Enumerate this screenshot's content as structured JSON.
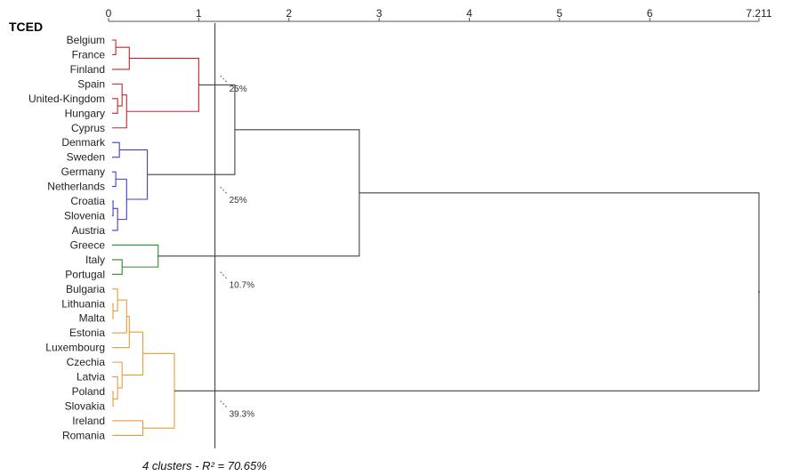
{
  "chart_data": {
    "type": "dendrogram",
    "title": "TCED",
    "axis": {
      "ticks": [
        "0",
        "1",
        "2",
        "3",
        "4",
        "5",
        "6",
        "7.211"
      ],
      "tick_values": [
        0,
        1,
        2,
        3,
        4,
        5,
        6,
        7.211
      ],
      "range": [
        0,
        7.211
      ]
    },
    "leaves": [
      {
        "name": "Belgium",
        "cluster": 0
      },
      {
        "name": "France",
        "cluster": 0
      },
      {
        "name": "Finland",
        "cluster": 0
      },
      {
        "name": "Spain",
        "cluster": 0
      },
      {
        "name": "United-Kingdom",
        "cluster": 0
      },
      {
        "name": "Hungary",
        "cluster": 0
      },
      {
        "name": "Cyprus",
        "cluster": 0
      },
      {
        "name": "Denmark",
        "cluster": 1
      },
      {
        "name": "Sweden",
        "cluster": 1
      },
      {
        "name": "Germany",
        "cluster": 1
      },
      {
        "name": "Netherlands",
        "cluster": 1
      },
      {
        "name": "Croatia",
        "cluster": 1
      },
      {
        "name": "Slovenia",
        "cluster": 1
      },
      {
        "name": "Austria",
        "cluster": 1
      },
      {
        "name": "Greece",
        "cluster": 2
      },
      {
        "name": "Italy",
        "cluster": 2
      },
      {
        "name": "Portugal",
        "cluster": 2
      },
      {
        "name": "Bulgaria",
        "cluster": 3
      },
      {
        "name": "Lithuania",
        "cluster": 3
      },
      {
        "name": "Malta",
        "cluster": 3
      },
      {
        "name": "Estonia",
        "cluster": 3
      },
      {
        "name": "Luxembourg",
        "cluster": 3
      },
      {
        "name": "Czechia",
        "cluster": 3
      },
      {
        "name": "Latvia",
        "cluster": 3
      },
      {
        "name": "Poland",
        "cluster": 3
      },
      {
        "name": "Slovakia",
        "cluster": 3
      },
      {
        "name": "Ireland",
        "cluster": 3
      },
      {
        "name": "Romania",
        "cluster": 3
      }
    ],
    "merges": [
      {
        "a": "L0",
        "b": "L1",
        "h": 0.08,
        "id": "m1"
      },
      {
        "a": "m1",
        "b": "L2",
        "h": 0.23,
        "id": "m2"
      },
      {
        "a": "L4",
        "b": "L5",
        "h": 0.1,
        "id": "m3"
      },
      {
        "a": "L3",
        "b": "m3",
        "h": 0.15,
        "id": "m4"
      },
      {
        "a": "m4",
        "b": "L6",
        "h": 0.2,
        "id": "m5"
      },
      {
        "a": "m2",
        "b": "m5",
        "h": 1.0,
        "id": "m6"
      },
      {
        "a": "L7",
        "b": "L8",
        "h": 0.12,
        "id": "m7"
      },
      {
        "a": "L9",
        "b": "L10",
        "h": 0.08,
        "id": "m8"
      },
      {
        "a": "L11",
        "b": "L12",
        "h": 0.05,
        "id": "m9"
      },
      {
        "a": "m9",
        "b": "L13",
        "h": 0.1,
        "id": "m10"
      },
      {
        "a": "m8",
        "b": "m10",
        "h": 0.2,
        "id": "m11"
      },
      {
        "a": "m7",
        "b": "m11",
        "h": 0.43,
        "id": "m12"
      },
      {
        "a": "m6",
        "b": "m12",
        "h": 1.4,
        "id": "m13"
      },
      {
        "a": "L15",
        "b": "L16",
        "h": 0.15,
        "id": "m14"
      },
      {
        "a": "L14",
        "b": "m14",
        "h": 0.55,
        "id": "m15"
      },
      {
        "a": "m13",
        "b": "m15",
        "h": 2.78,
        "id": "m16"
      },
      {
        "a": "L18",
        "b": "L19",
        "h": 0.05,
        "id": "m17"
      },
      {
        "a": "L17",
        "b": "m17",
        "h": 0.1,
        "id": "m18"
      },
      {
        "a": "m18",
        "b": "L20",
        "h": 0.2,
        "id": "m19"
      },
      {
        "a": "m19",
        "b": "L21",
        "h": 0.23,
        "id": "m20"
      },
      {
        "a": "L24",
        "b": "L25",
        "h": 0.05,
        "id": "m21"
      },
      {
        "a": "L23",
        "b": "m21",
        "h": 0.1,
        "id": "m22"
      },
      {
        "a": "L22",
        "b": "m22",
        "h": 0.15,
        "id": "m23"
      },
      {
        "a": "m20",
        "b": "m23",
        "h": 0.38,
        "id": "m24"
      },
      {
        "a": "L26",
        "b": "L27",
        "h": 0.38,
        "id": "m25"
      },
      {
        "a": "m24",
        "b": "m25",
        "h": 0.73,
        "id": "m26"
      },
      {
        "a": "m16",
        "b": "m26",
        "h": 7.211,
        "id": "m27"
      }
    ],
    "colors": [
      "#c8242b",
      "#3f3fd1",
      "#2a8c2a",
      "#e89a3c"
    ],
    "link_color": "#444444",
    "cut_line": 1.18,
    "cut_percentages": [
      {
        "text": "25%",
        "row": 2.8
      },
      {
        "text": "25%",
        "row": 10.4
      },
      {
        "text": "10.7%",
        "row": 16.2
      },
      {
        "text": "39.3%",
        "row": 25.0
      }
    ],
    "caption": "4 clusters - R² = 70.65%"
  }
}
